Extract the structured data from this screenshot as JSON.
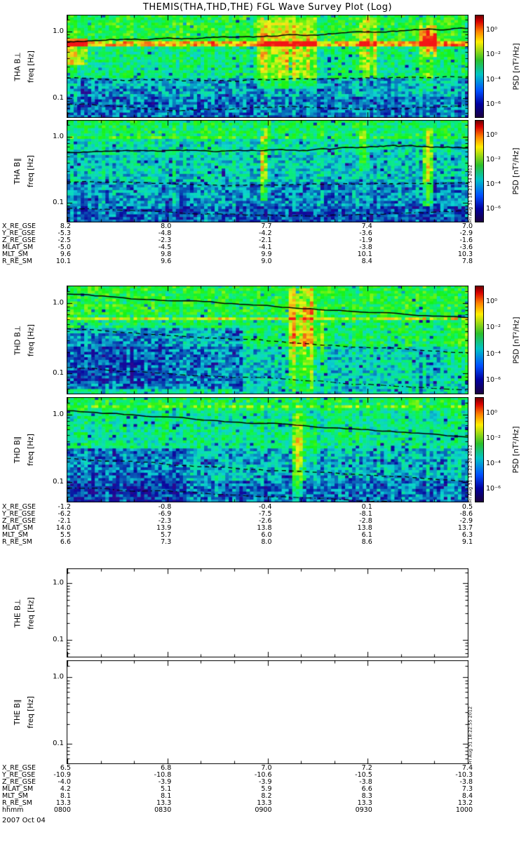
{
  "chart_data": {
    "type": "heatmap",
    "title": "THEMIS(THA,THD,THE) FGL Wave Survey Plot (Log)",
    "date": "2007 Oct 04",
    "time_axis": {
      "label": "hhmm",
      "ticks": [
        "0800",
        "0830",
        "0900",
        "0930",
        "1000"
      ]
    },
    "colorbar": {
      "label": "PSD [nT²/Hz]",
      "ticks": [
        "10⁰",
        "10⁻²",
        "10⁻⁴",
        "10⁻⁶"
      ],
      "colors_top_to_bottom": [
        "#6e0000",
        "#d80000",
        "#ff8400",
        "#ffee00",
        "#2cc02c",
        "#00c4c4",
        "#0050ff",
        "#0000a0",
        "#1a0040"
      ]
    },
    "panels": [
      {
        "id": "tha-bperp",
        "label": "THA B⊥",
        "ylabel": "freq [Hz]",
        "yticks": [
          "1.0",
          "0.1"
        ],
        "ylim_hz": [
          0.05,
          1.8
        ],
        "empty": false,
        "timestamp": "",
        "render": {
          "seed": 11,
          "profile": [
            [
              0,
              0.08,
              0.5
            ],
            [
              0.08,
              0.3,
              0.52
            ],
            [
              0.3,
              0.62,
              0.42
            ],
            [
              0.62,
              0.8,
              0.27
            ],
            [
              0.8,
              1,
              0.2
            ]
          ],
          "spin": {
            "t": 0.285,
            "w": 0.018,
            "dv": 0.32
          },
          "patches": [
            {
              "x0": 0,
              "x1": 0.05,
              "t0": 0.22,
              "t1": 0.5,
              "dv": 0.3
            }
          ],
          "bursts": [
            {
              "x0": 0.476,
              "x1": 0.623,
              "t0": 0.03,
              "t1": 0.72,
              "amp": 0.3
            },
            {
              "x0": 0.73,
              "x1": 0.775,
              "t0": 0.03,
              "t1": 0.62,
              "amp": 0.26
            },
            {
              "x0": 0.875,
              "x1": 0.925,
              "t0": 0.1,
              "t1": 0.4,
              "amp": 0.5
            },
            {
              "x0": 0.875,
              "x1": 0.915,
              "t0": 0.4,
              "t1": 0.75,
              "amp": 0.18
            }
          ],
          "lines": [
            {
              "style": "solid",
              "pts": [
                [
                  0,
                  0.26
                ],
                [
                  0.25,
                  0.23
                ],
                [
                  0.5,
                  0.21
                ],
                [
                  0.75,
                  0.17
                ],
                [
                  1,
                  0.13
                ]
              ]
            },
            {
              "style": "dashed",
              "pts": [
                [
                  0,
                  0.61
                ],
                [
                  0.3,
                  0.64
                ],
                [
                  0.6,
                  0.62
                ],
                [
                  1,
                  0.6
                ]
              ]
            },
            {
              "style": "dashdot",
              "pts": [
                [
                  0,
                  0.86
                ],
                [
                  0.3,
                  0.93
                ],
                [
                  0.55,
                  0.89
                ],
                [
                  0.78,
                  0.92
                ],
                [
                  1,
                  0.87
                ]
              ]
            }
          ]
        }
      },
      {
        "id": "tha-bpar",
        "label": "THA B∥",
        "ylabel": "freq [Hz]",
        "yticks": [
          "1.0",
          "0.1"
        ],
        "ylim_hz": [
          0.05,
          1.8
        ],
        "empty": false,
        "timestamp": "Fri Aug 31 18:21:54 2012",
        "render": {
          "seed": 22,
          "profile": [
            [
              0,
              0.15,
              0.46
            ],
            [
              0.15,
              0.35,
              0.36
            ],
            [
              0.35,
              0.6,
              0.32
            ],
            [
              0.6,
              0.85,
              0.24
            ],
            [
              0.85,
              1,
              0.17
            ]
          ],
          "spin": {
            "t": 0.17,
            "w": 0.015,
            "dv": 0.18
          },
          "patches": [],
          "bursts": [
            {
              "x0": 0.483,
              "x1": 0.5,
              "t0": 0.08,
              "t1": 0.8,
              "amp": 0.38
            },
            {
              "x0": 0.89,
              "x1": 0.912,
              "t0": 0.08,
              "t1": 0.85,
              "amp": 0.45
            },
            {
              "x0": 0.73,
              "x1": 0.745,
              "t0": 0.1,
              "t1": 0.5,
              "amp": 0.18
            }
          ],
          "lines": [
            {
              "style": "solid",
              "pts": [
                [
                  0,
                  0.32
                ],
                [
                  0.3,
                  0.3
                ],
                [
                  0.6,
                  0.29
                ],
                [
                  0.82,
                  0.25
                ],
                [
                  1,
                  0.28
                ]
              ]
            },
            {
              "style": "dashed",
              "pts": [
                [
                  0,
                  0.6
                ],
                [
                  0.4,
                  0.64
                ],
                [
                  0.8,
                  0.62
                ],
                [
                  1,
                  0.61
                ]
              ]
            },
            {
              "style": "dashdot",
              "pts": [
                [
                  0,
                  0.86
                ],
                [
                  0.35,
                  0.91
                ],
                [
                  0.65,
                  0.94
                ],
                [
                  1,
                  0.89
                ]
              ]
            }
          ]
        }
      },
      {
        "id": "thd-bperp",
        "label": "THD B⊥",
        "ylabel": "freq [Hz]",
        "yticks": [
          "1.0",
          "0.1"
        ],
        "ylim_hz": [
          0.05,
          1.8
        ],
        "empty": false,
        "timestamp": "",
        "render": {
          "seed": 33,
          "profile": [
            [
              0,
              0.28,
              0.5
            ],
            [
              0.28,
              0.55,
              0.44
            ],
            [
              0.55,
              1,
              0.38
            ]
          ],
          "spin": {
            "t": 0.31,
            "w": 0.016,
            "dv": 0.28
          },
          "patches": [
            {
              "x0": 0,
              "x1": 0.44,
              "t0": 0.38,
              "t1": 0.95,
              "dv": -0.18
            },
            {
              "x0": 0,
              "x1": 0.25,
              "t0": 0.45,
              "t1": 0.9,
              "dv": -0.06
            },
            {
              "x0": 0.44,
              "x1": 1,
              "t0": 0.55,
              "t1": 1,
              "dv": -0.06
            }
          ],
          "bursts": [
            {
              "x0": 0.555,
              "x1": 0.615,
              "t0": 0.03,
              "t1": 0.97,
              "amp": 0.32
            },
            {
              "x0": 0.61,
              "x1": 0.64,
              "t0": 0.2,
              "t1": 0.8,
              "amp": 0.15
            },
            {
              "x0": 0.95,
              "x1": 1.0,
              "t0": 0.3,
              "t1": 0.9,
              "amp": 0.12
            }
          ],
          "lines": [
            {
              "style": "solid",
              "pts": [
                [
                  0,
                  0.08
                ],
                [
                  0.5,
                  0.19
                ],
                [
                  1,
                  0.3
                ]
              ]
            },
            {
              "style": "dashed",
              "pts": [
                [
                  0,
                  0.4
                ],
                [
                  0.5,
                  0.51
                ],
                [
                  1,
                  0.62
                ]
              ]
            },
            {
              "style": "dashdot",
              "pts": [
                [
                  0,
                  0.75
                ],
                [
                  0.5,
                  0.85
                ],
                [
                  1,
                  0.96
                ]
              ]
            }
          ]
        }
      },
      {
        "id": "thd-bpar",
        "label": "THD B∥",
        "ylabel": "freq [Hz]",
        "yticks": [
          "1.0",
          "0.1"
        ],
        "ylim_hz": [
          0.05,
          1.8
        ],
        "empty": false,
        "timestamp": "Fri Aug 31 18:22:20 2012",
        "render": {
          "seed": 44,
          "profile": [
            [
              0,
              0.12,
              0.48
            ],
            [
              0.12,
              0.5,
              0.4
            ],
            [
              0.5,
              0.8,
              0.28
            ],
            [
              0.8,
              1,
              0.2
            ]
          ],
          "spin": {
            "t": 0.1,
            "w": 0.013,
            "dv": 0.12
          },
          "patches": [
            {
              "x0": 0,
              "x1": 0.3,
              "t0": 0.5,
              "t1": 1,
              "dv": -0.08
            }
          ],
          "bursts": [
            {
              "x0": 0.565,
              "x1": 0.6,
              "t0": 0.15,
              "t1": 0.95,
              "amp": 0.3
            },
            {
              "x0": 0.6,
              "x1": 0.625,
              "t0": 0.3,
              "t1": 0.7,
              "amp": 0.15
            }
          ],
          "lines": [
            {
              "style": "solid",
              "pts": [
                [
                  0,
                  0.13
                ],
                [
                  0.5,
                  0.25
                ],
                [
                  1,
                  0.38
                ]
              ]
            },
            {
              "style": "dashed",
              "pts": [
                [
                  0,
                  0.58
                ],
                [
                  0.5,
                  0.69
                ],
                [
                  1,
                  0.8
                ]
              ]
            },
            {
              "style": "dashdot",
              "pts": [
                [
                  0,
                  0.86
                ],
                [
                  0.5,
                  0.94
                ],
                [
                  1,
                  1.02
                ]
              ]
            }
          ]
        }
      },
      {
        "id": "the-bperp",
        "label": "THE B⊥",
        "ylabel": "freq [Hz]",
        "yticks": [
          "1.0",
          "0.1"
        ],
        "ylim_hz": [
          0.05,
          1.8
        ],
        "empty": true,
        "timestamp": "",
        "render": null
      },
      {
        "id": "the-bpar",
        "label": "THE B∥",
        "ylabel": "freq [Hz]",
        "yticks": [
          "1.0",
          "0.1"
        ],
        "ylim_hz": [
          0.05,
          1.8
        ],
        "empty": true,
        "timestamp": "Fri Aug 31 18:22:55 2012",
        "render": null
      }
    ],
    "ephemeris_blocks": [
      {
        "rows": [
          {
            "label": "X_RE_GSE",
            "values": [
              "8.2",
              "8.0",
              "7.7",
              "7.4",
              "7.0"
            ]
          },
          {
            "label": "Y_RE_GSE",
            "values": [
              "-5.3",
              "-4.8",
              "-4.2",
              "-3.6",
              "-2.9"
            ]
          },
          {
            "label": "Z_RE_GSE",
            "values": [
              "-2.5",
              "-2.3",
              "-2.1",
              "-1.9",
              "-1.6"
            ]
          },
          {
            "label": "MLAT_SM",
            "values": [
              "-5.0",
              "-4.5",
              "-4.1",
              "-3.8",
              "-3.6"
            ]
          },
          {
            "label": "MLT_SM",
            "values": [
              "9.6",
              "9.8",
              "9.9",
              "10.1",
              "10.3"
            ]
          },
          {
            "label": "R_RE_SM",
            "values": [
              "10.1",
              "9.6",
              "9.0",
              "8.4",
              "7.8"
            ]
          }
        ]
      },
      {
        "rows": [
          {
            "label": "X_RE_GSE",
            "values": [
              "-1.2",
              "-0.8",
              "-0.4",
              "0.1",
              "0.5"
            ]
          },
          {
            "label": "Y_RE_GSE",
            "values": [
              "-6.2",
              "-6.9",
              "-7.5",
              "-8.1",
              "-8.6"
            ]
          },
          {
            "label": "Z_RE_GSE",
            "values": [
              "-2.1",
              "-2.3",
              "-2.6",
              "-2.8",
              "-2.9"
            ]
          },
          {
            "label": "MLAT_SM",
            "values": [
              "14.0",
              "13.9",
              "13.8",
              "13.8",
              "13.7"
            ]
          },
          {
            "label": "MLT_SM",
            "values": [
              "5.5",
              "5.7",
              "6.0",
              "6.1",
              "6.3"
            ]
          },
          {
            "label": "R_RE_SM",
            "values": [
              "6.6",
              "7.3",
              "8.0",
              "8.6",
              "9.1"
            ]
          }
        ]
      },
      {
        "rows": [
          {
            "label": "X_RE_GSE",
            "values": [
              "6.5",
              "6.8",
              "7.0",
              "7.2",
              "7.4"
            ]
          },
          {
            "label": "Y_RE_GSE",
            "values": [
              "-10.9",
              "-10.8",
              "-10.6",
              "-10.5",
              "-10.3"
            ]
          },
          {
            "label": "Z_RE_GSE",
            "values": [
              "-4.0",
              "-3.9",
              "-3.9",
              "-3.8",
              "-3.8"
            ]
          },
          {
            "label": "MLAT_SM",
            "values": [
              "4.2",
              "5.1",
              "5.9",
              "6.6",
              "7.3"
            ]
          },
          {
            "label": "MLT_SM",
            "values": [
              "8.1",
              "8.1",
              "8.2",
              "8.3",
              "8.4"
            ]
          },
          {
            "label": "R_RE_SM",
            "values": [
              "13.3",
              "13.3",
              "13.3",
              "13.3",
              "13.2"
            ]
          },
          {
            "label": "hhmm",
            "values": [
              "0800",
              "0830",
              "0900",
              "0930",
              "1000"
            ]
          }
        ]
      }
    ]
  }
}
